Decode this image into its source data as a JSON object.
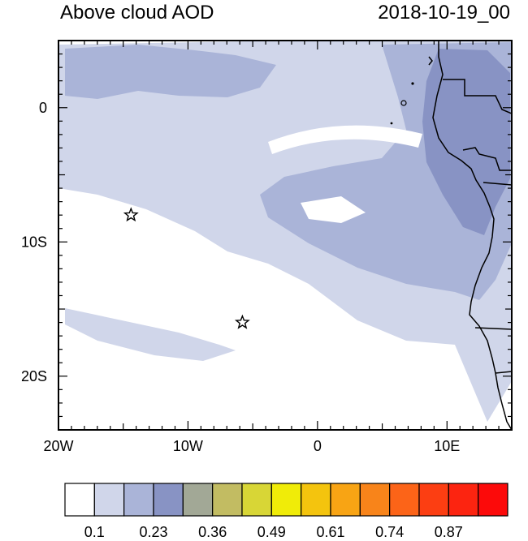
{
  "title": "Above cloud AOD",
  "datetime": "2018-10-19_00",
  "map": {
    "lon_range": [
      -20,
      15
    ],
    "lat_range": [
      -24,
      5
    ],
    "x_ticks": [
      {
        "lon": -20,
        "label": "20W"
      },
      {
        "lon": -10,
        "label": "10W"
      },
      {
        "lon": 0,
        "label": "0"
      },
      {
        "lon": 10,
        "label": "10E"
      }
    ],
    "y_ticks": [
      {
        "lat": 0,
        "label": "0"
      },
      {
        "lat": -10,
        "label": "10S"
      },
      {
        "lat": -20,
        "label": "20S"
      }
    ],
    "stars": [
      {
        "name": "star-marker-1",
        "lon": -14.4,
        "lat": -8.0
      },
      {
        "name": "star-marker-2",
        "lon": -5.8,
        "lat": -16.0
      }
    ]
  },
  "colorbar": {
    "colors": [
      "#ffffff",
      "#d0d6ea",
      "#aab4d8",
      "#8893c4",
      "#a2a896",
      "#c2bc62",
      "#d8d636",
      "#f0ec08",
      "#f4c40e",
      "#f8a414",
      "#f8841a",
      "#fc6418",
      "#fc3e12",
      "#fc2410",
      "#fc0a0a"
    ],
    "labels": [
      "0.1",
      "0.23",
      "0.36",
      "0.49",
      "0.61",
      "0.74",
      "0.87"
    ]
  },
  "colors": {
    "aod_low": "#d0d6ea",
    "aod_mid": "#aab4d8",
    "aod_high": "#8893c4"
  }
}
